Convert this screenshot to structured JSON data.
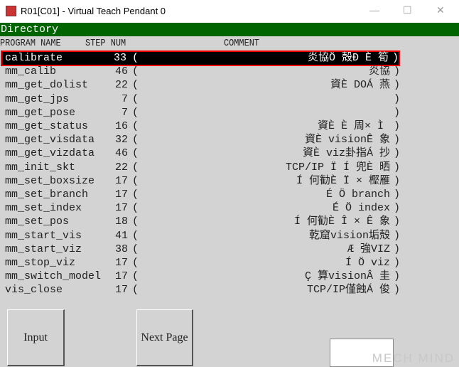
{
  "window": {
    "title": "R01[C01] - Virtual Teach Pendant 0",
    "minimize": "—",
    "maximize": "☐",
    "close": "✕"
  },
  "directory": {
    "title": "Directory"
  },
  "headers": {
    "name": "PROGRAM NAME",
    "step": "STEP NUM",
    "comment": "COMMENT"
  },
  "rows": [
    {
      "name": "calibrate",
      "step": "33",
      "comment": "炎協Ö 殻Ð È 筍",
      "selected": true
    },
    {
      "name": "mm_calib",
      "step": "46",
      "comment": "炎協"
    },
    {
      "name": "mm_get_dolist",
      "step": "22",
      "comment": "資È DOÁ 燕"
    },
    {
      "name": "mm_get_jps",
      "step": "7",
      "comment": ""
    },
    {
      "name": "mm_get_pose",
      "step": "7",
      "comment": ""
    },
    {
      "name": "mm_get_status",
      "step": "16",
      "comment": "資È È 周× Ì "
    },
    {
      "name": "mm_get_visdata",
      "step": "32",
      "comment": "資È visionÊ 象"
    },
    {
      "name": "mm_get_vizdata",
      "step": "46",
      "comment": "資È viz卦指Á 抄"
    },
    {
      "name": "mm_init_skt",
      "step": "22",
      "comment": "TCP/IP Ï Í 兜È 晒"
    },
    {
      "name": "mm_set_boxsize",
      "step": "17",
      "comment": "Í 何勧È Ï × 樫雁"
    },
    {
      "name": "mm_set_branch",
      "step": "17",
      "comment": "É Ö branch"
    },
    {
      "name": "mm_set_index",
      "step": "17",
      "comment": "É Ö index"
    },
    {
      "name": "mm_set_pos",
      "step": "18",
      "comment": "Í 何勧È Î × Ê 象"
    },
    {
      "name": "mm_start_vis",
      "step": "41",
      "comment": "乾窟vision垢殻"
    },
    {
      "name": "mm_start_viz",
      "step": "38",
      "comment": "Æ 強VIZ"
    },
    {
      "name": "mm_stop_viz",
      "step": "17",
      "comment": "Í Ö viz"
    },
    {
      "name": "mm_switch_model",
      "step": "17",
      "comment": "Ç 算visionÂ 圭"
    },
    {
      "name": "vis_close",
      "step": "17",
      "comment": "TCP/IP僅蝕Á 俊"
    }
  ],
  "buttons": {
    "input": "Input",
    "next_page": "Next Page"
  },
  "watermark": "MECH MIND",
  "colors": {
    "directory_bar": "#006400",
    "selection_border": "#ee0000"
  }
}
